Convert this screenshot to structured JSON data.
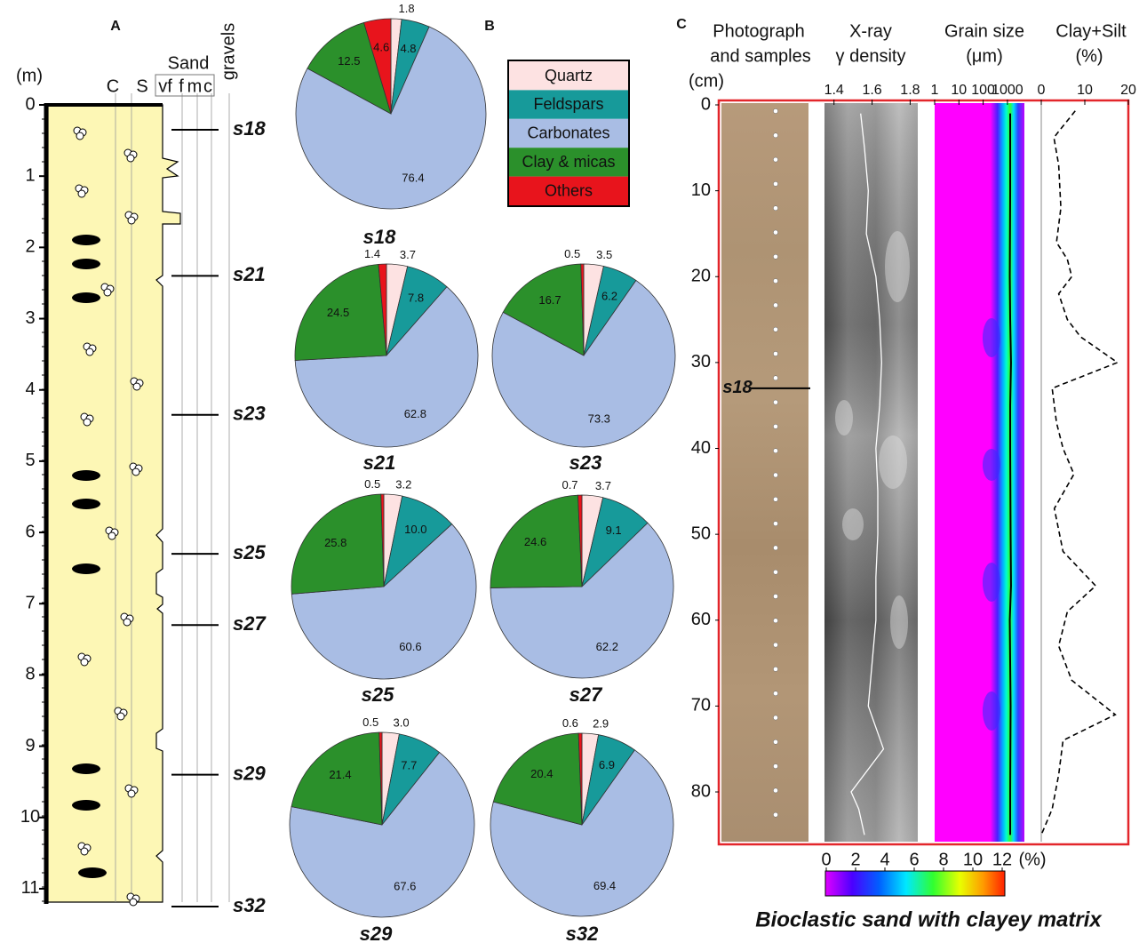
{
  "panel_a": {
    "label": "A",
    "y_label": "(m)",
    "ylim": [
      0,
      11.3
    ],
    "yticks": [
      0,
      1,
      2,
      3,
      4,
      5,
      6,
      7,
      8,
      9,
      10,
      11
    ],
    "columns": {
      "clay": "C",
      "silt": "S",
      "sand": "Sand",
      "very_fine": "vf",
      "fine": "f",
      "medium": "m",
      "coarse": "c",
      "gravels": "gravels"
    },
    "samples": [
      {
        "name": "s18",
        "depth": 0.35
      },
      {
        "name": "s21",
        "depth": 2.4
      },
      {
        "name": "s23",
        "depth": 4.35
      },
      {
        "name": "s25",
        "depth": 6.3
      },
      {
        "name": "s27",
        "depth": 7.3
      },
      {
        "name": "s29",
        "depth": 9.4
      },
      {
        "name": "s32",
        "depth": 11.25
      }
    ]
  },
  "panel_b": {
    "label": "B",
    "legend": [
      "Quartz",
      "Feldspars",
      "Carbonates",
      "Clay & micas",
      "Others"
    ],
    "colors": [
      "#fde2e2",
      "#179a9a",
      "#a9bde4",
      "#2b902b",
      "#e8141c"
    ]
  },
  "chart_data": [
    {
      "type": "pie",
      "title": "s18",
      "values": [
        1.8,
        4.8,
        76.4,
        12.5,
        4.6
      ]
    },
    {
      "type": "pie",
      "title": "s21",
      "values": [
        3.7,
        7.8,
        62.8,
        24.5,
        1.4
      ]
    },
    {
      "type": "pie",
      "title": "s23",
      "values": [
        3.5,
        6.2,
        73.3,
        16.7,
        0.5
      ]
    },
    {
      "type": "pie",
      "title": "s25",
      "values": [
        3.2,
        10.0,
        60.6,
        25.8,
        0.5
      ],
      "value_labels": [
        "3.2",
        "10.0",
        "60.6",
        "25.8",
        "0.5"
      ]
    },
    {
      "type": "pie",
      "title": "s27",
      "values": [
        3.7,
        9.1,
        62.2,
        24.6,
        0.7
      ]
    },
    {
      "type": "pie",
      "title": "s29",
      "values": [
        3.0,
        7.7,
        67.6,
        21.4,
        0.5
      ],
      "value_labels": [
        "3.0",
        "7.7",
        "67.6",
        "21.4",
        "0.5"
      ]
    },
    {
      "type": "pie",
      "title": "s32",
      "values": [
        2.9,
        6.9,
        69.4,
        20.4,
        0.6
      ]
    }
  ],
  "panel_c": {
    "label": "C",
    "headers": {
      "photo": [
        "Photograph",
        "and samples"
      ],
      "density": [
        "X-ray",
        "γ density"
      ],
      "grain": [
        "Grain size",
        "(μm)"
      ],
      "clay": [
        "Clay+Silt",
        "(%)"
      ]
    },
    "y_label": "(cm)",
    "ylim": [
      0,
      86
    ],
    "yticks": [
      0,
      10,
      20,
      30,
      40,
      50,
      60,
      70,
      80
    ],
    "sample": {
      "name": "s18",
      "depth": 33
    },
    "density": {
      "xlim": [
        1.35,
        1.84
      ],
      "xticks": [
        1.4,
        1.6,
        1.8
      ],
      "depth": [
        1,
        5,
        10,
        15,
        20,
        25,
        30,
        35,
        40,
        45,
        50,
        55,
        60,
        65,
        70,
        75,
        80,
        82,
        85
      ],
      "values": [
        1.54,
        1.56,
        1.58,
        1.57,
        1.62,
        1.64,
        1.65,
        1.64,
        1.62,
        1.63,
        1.63,
        1.62,
        1.62,
        1.6,
        1.58,
        1.66,
        1.49,
        1.53,
        1.56
      ]
    },
    "grain_size": {
      "log_x": true,
      "xlim": [
        1,
        5000
      ],
      "xticks": [
        1,
        10,
        100,
        1000
      ],
      "depth": [
        1,
        10,
        20,
        25,
        30,
        35,
        40,
        50,
        56,
        60,
        70,
        80,
        85
      ],
      "values": [
        1300,
        1300,
        1250,
        1300,
        1400,
        1300,
        1300,
        1350,
        1400,
        1250,
        1350,
        1300,
        1300
      ]
    },
    "clay_silt": {
      "xlim": [
        0,
        20
      ],
      "xticks": [
        0,
        10,
        20
      ],
      "depth": [
        0.7,
        3.8,
        7,
        12,
        16,
        18,
        20,
        22,
        25,
        27,
        30,
        33,
        37,
        40,
        43,
        47,
        52,
        56,
        59,
        63,
        67,
        71,
        74,
        78,
        82,
        85
      ],
      "values": [
        7.8,
        2.9,
        4,
        4.5,
        3.5,
        6,
        7,
        4,
        6,
        9,
        17.5,
        2.5,
        3.5,
        5,
        7.5,
        3,
        5,
        12.5,
        6,
        4,
        7,
        17,
        5,
        4,
        2.5,
        0
      ]
    },
    "colorbar": {
      "clim": [
        0,
        12
      ],
      "ticks": [
        0,
        2,
        4,
        6,
        8,
        10,
        12
      ],
      "unit": "(%)"
    },
    "caption": "Bioclastic sand with clayey matrix"
  }
}
